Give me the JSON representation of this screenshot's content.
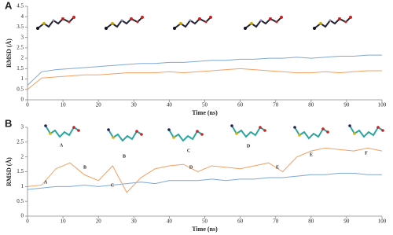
{
  "chart_data": [
    {
      "type": "line",
      "label": "A",
      "xlabel": "Time (ns)",
      "ylabel": "RMSD (Å)",
      "x": [
        0,
        4,
        8,
        12,
        16,
        20,
        24,
        28,
        32,
        36,
        40,
        44,
        48,
        52,
        56,
        60,
        64,
        68,
        72,
        76,
        80,
        84,
        88,
        92,
        96,
        100
      ],
      "series": [
        {
          "color": "#7fa9d6",
          "values": [
            0.7,
            1.35,
            1.45,
            1.5,
            1.55,
            1.6,
            1.65,
            1.7,
            1.75,
            1.75,
            1.8,
            1.8,
            1.85,
            1.9,
            1.9,
            1.95,
            1.95,
            2.0,
            2.0,
            2.05,
            2.0,
            2.05,
            2.1,
            2.1,
            2.15,
            2.15
          ]
        },
        {
          "color": "#f2a064",
          "values": [
            0.5,
            1.05,
            1.1,
            1.15,
            1.2,
            1.2,
            1.25,
            1.3,
            1.3,
            1.3,
            1.35,
            1.3,
            1.35,
            1.4,
            1.45,
            1.5,
            1.45,
            1.4,
            1.35,
            1.3,
            1.3,
            1.35,
            1.3,
            1.35,
            1.4,
            1.4
          ]
        }
      ],
      "xlim": [
        0,
        100
      ],
      "xticks": [
        0,
        10,
        20,
        30,
        40,
        50,
        60,
        70,
        80,
        90,
        100
      ],
      "ylim": [
        0,
        4.5
      ],
      "yticks": [
        0,
        0.5,
        1,
        1.5,
        2,
        2.5,
        3,
        3.5,
        4,
        4.5
      ]
    },
    {
      "type": "line",
      "label": "B",
      "xlabel": "Time (ns)",
      "ylabel": "RMSD (Å)",
      "structure_labels": [
        "A",
        "B",
        "C",
        "D",
        "E",
        "F"
      ],
      "annotations": [
        "A",
        "B",
        "C",
        "D",
        "E"
      ],
      "x": [
        0,
        4,
        8,
        12,
        16,
        20,
        24,
        28,
        32,
        36,
        40,
        44,
        48,
        52,
        56,
        60,
        64,
        68,
        72,
        76,
        80,
        84,
        88,
        92,
        96,
        100
      ],
      "series": [
        {
          "color": "#7fa9d6",
          "values": [
            0.9,
            0.95,
            1.0,
            1.0,
            1.05,
            1.0,
            1.05,
            1.1,
            1.15,
            1.1,
            1.2,
            1.2,
            1.2,
            1.25,
            1.2,
            1.25,
            1.25,
            1.3,
            1.3,
            1.35,
            1.4,
            1.4,
            1.45,
            1.45,
            1.4,
            1.4
          ]
        },
        {
          "color": "#f2a064",
          "values": [
            1.0,
            1.05,
            1.6,
            1.8,
            1.4,
            1.2,
            1.7,
            0.8,
            1.3,
            1.6,
            1.7,
            1.75,
            1.5,
            1.7,
            1.65,
            1.6,
            1.7,
            1.8,
            1.5,
            2.0,
            2.2,
            2.3,
            2.25,
            2.2,
            2.3,
            2.2
          ]
        }
      ],
      "xlim": [
        0,
        100
      ],
      "xticks": [
        0,
        10,
        20,
        30,
        40,
        50,
        60,
        70,
        80,
        90,
        100
      ],
      "ylim": [
        0,
        3
      ],
      "yticks": [
        0,
        0.5,
        1,
        1.5,
        2,
        2.5,
        3
      ]
    }
  ]
}
